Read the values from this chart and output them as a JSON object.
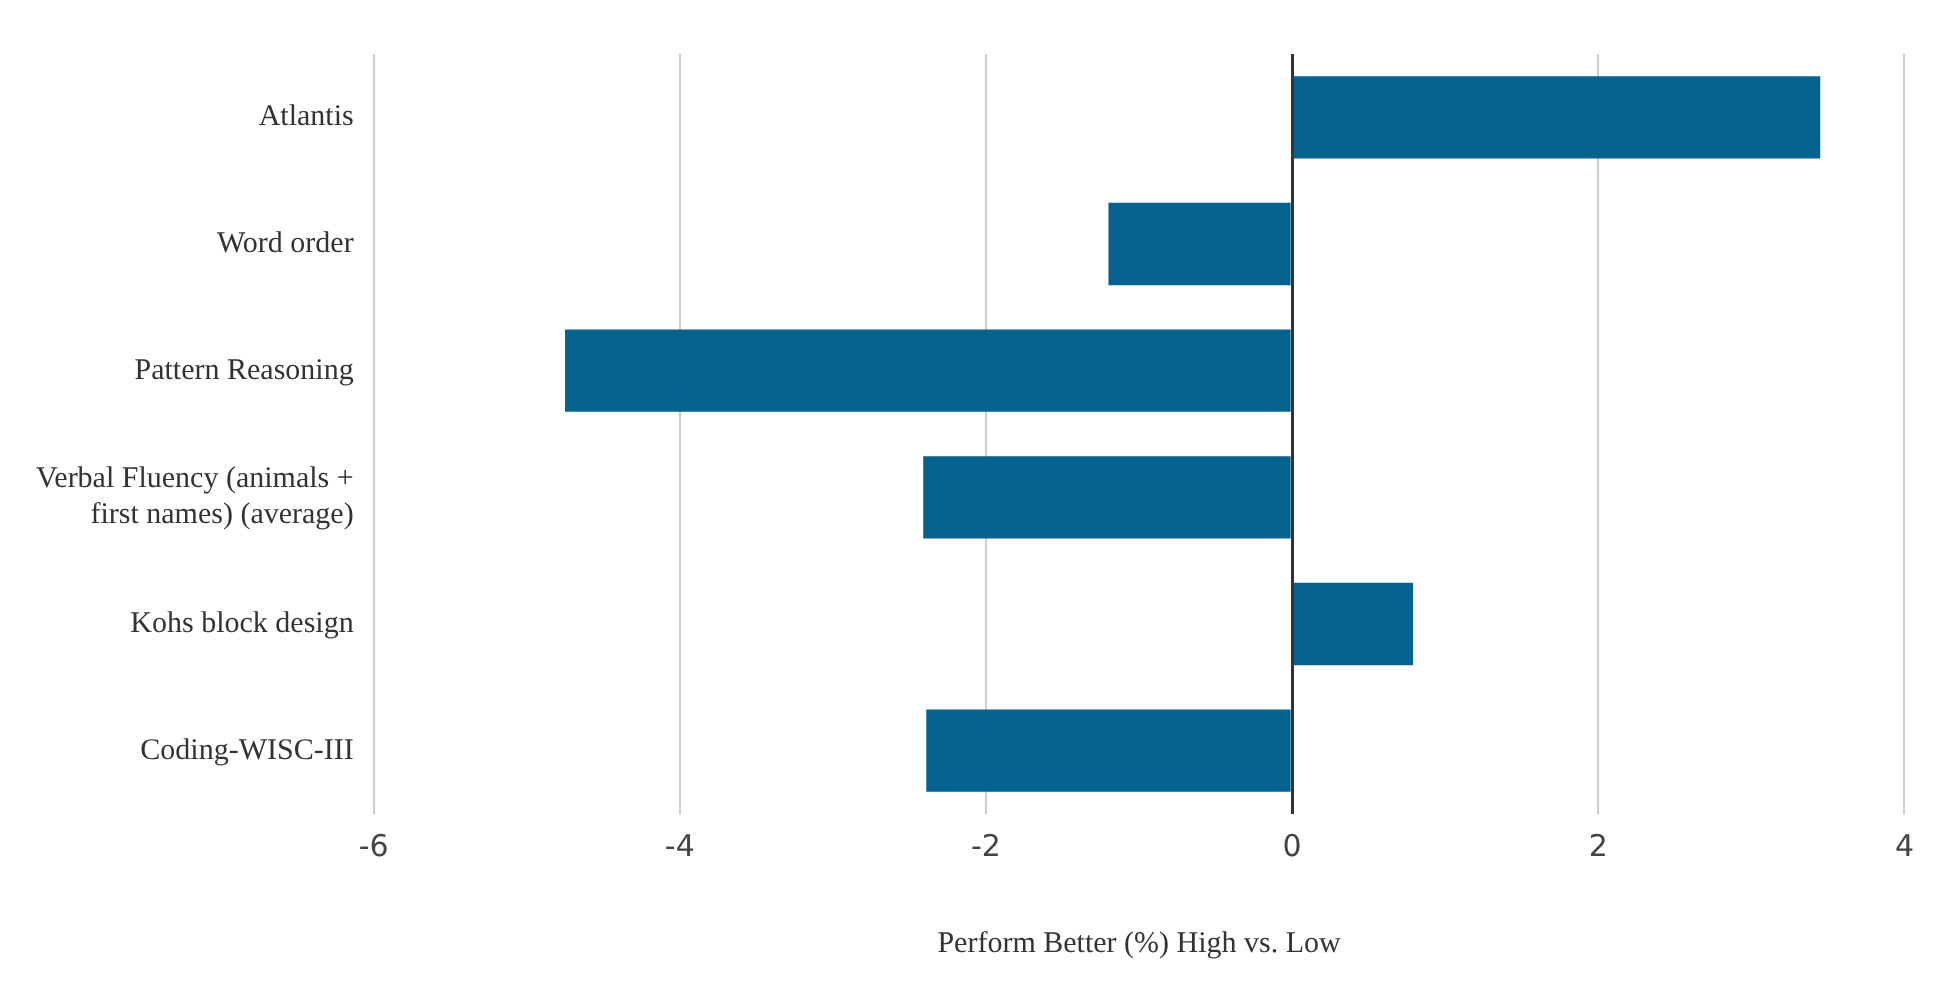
{
  "chart_data": {
    "type": "bar",
    "orientation": "horizontal",
    "xlabel": "Perform Better (%) High vs. Low",
    "categories": [
      "Atlantis",
      "Word order",
      "Pattern Reasoning",
      "Verbal Fluency (animals + first names) (average)",
      "Kohs block design",
      "Coding-WISC-III"
    ],
    "values": [
      3.45,
      -1.2,
      -4.75,
      -2.41,
      0.79,
      -2.39
    ],
    "color": "#04628f",
    "xlim": [
      -6,
      4
    ],
    "xticks": [
      -6,
      -4,
      -2,
      0,
      2,
      4
    ],
    "grid": "x"
  }
}
